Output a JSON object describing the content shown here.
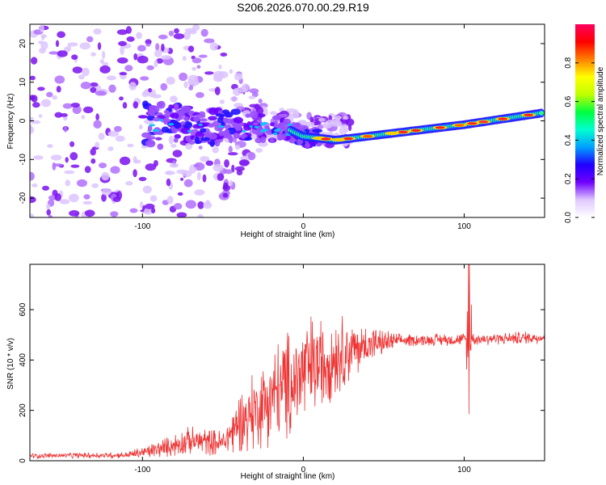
{
  "title": "S206.2026.070.00.29.R19",
  "chart_data": [
    {
      "type": "heatmap",
      "xlabel": "Height of straight line (km)",
      "ylabel": "Frequency (Hz)",
      "xlim": [
        -170,
        150
      ],
      "ylim": [
        -25,
        25
      ],
      "xticks": [
        -100,
        0,
        100
      ],
      "yticks": [
        -20,
        -10,
        0,
        10,
        20
      ],
      "ridge": {
        "description_points": [
          {
            "x": -100,
            "y": -1
          },
          {
            "x": -50,
            "y": -1.5
          },
          {
            "x": -10,
            "y": -2
          },
          {
            "x": 0,
            "y": -4
          },
          {
            "x": 20,
            "y": -5
          },
          {
            "x": 60,
            "y": -3
          },
          {
            "x": 100,
            "y": -1
          },
          {
            "x": 148,
            "y": 2
          }
        ]
      },
      "colorbar": {
        "label": "Normalized spectral amplitude",
        "range": [
          0,
          1
        ],
        "ticks": [
          0.0,
          0.2,
          0.4,
          0.6,
          0.8
        ],
        "colormap": [
          "#ffffff",
          "#e0c8ff",
          "#7000ff",
          "#2000ff",
          "#00a0ff",
          "#00ffd0",
          "#00ff40",
          "#c0ff00",
          "#ffff00",
          "#ff8000",
          "#ff0000",
          "#ff0060"
        ]
      }
    },
    {
      "type": "line",
      "xlabel": "Height of straight line (km)",
      "ylabel": "SNR (10 * v/v)",
      "xlim": [
        -170,
        150
      ],
      "ylim": [
        0,
        780
      ],
      "xticks": [
        -100,
        0,
        100
      ],
      "yticks": [
        0,
        200,
        400,
        600
      ],
      "color": "#ee3333",
      "envelope": [
        {
          "x": -170,
          "mean": 20,
          "amp": 10
        },
        {
          "x": -110,
          "mean": 22,
          "amp": 12
        },
        {
          "x": -90,
          "mean": 45,
          "amp": 35
        },
        {
          "x": -70,
          "mean": 80,
          "amp": 60
        },
        {
          "x": -50,
          "mean": 70,
          "amp": 50
        },
        {
          "x": -40,
          "mean": 150,
          "amp": 120
        },
        {
          "x": -20,
          "mean": 250,
          "amp": 200
        },
        {
          "x": 0,
          "mean": 350,
          "amp": 230
        },
        {
          "x": 20,
          "mean": 420,
          "amp": 170
        },
        {
          "x": 40,
          "mean": 460,
          "amp": 80
        },
        {
          "x": 60,
          "mean": 478,
          "amp": 25
        },
        {
          "x": 100,
          "mean": 482,
          "amp": 25
        },
        {
          "x": 150,
          "mean": 490,
          "amp": 25
        }
      ],
      "spike": {
        "x": 103,
        "max": 780,
        "min": 185
      }
    }
  ]
}
